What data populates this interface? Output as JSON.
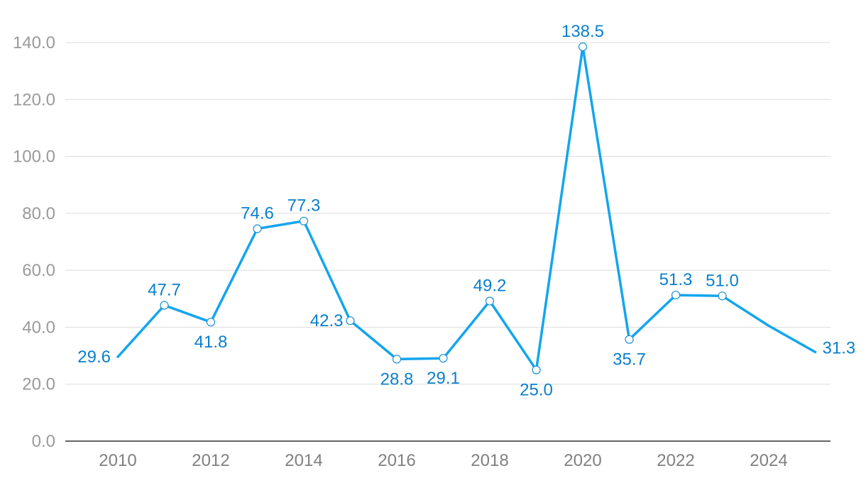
{
  "chart_data": {
    "type": "line",
    "title": "",
    "xlabel": "",
    "ylabel": "",
    "x": [
      2010,
      2011,
      2012,
      2013,
      2014,
      2015,
      2016,
      2017,
      2018,
      2019,
      2020,
      2021,
      2022,
      2023,
      2024,
      2025
    ],
    "series": [
      {
        "values": [
          29.6,
          47.7,
          41.8,
          74.6,
          77.3,
          42.3,
          28.8,
          29.1,
          49.2,
          25.0,
          138.5,
          35.7,
          51.3,
          51.0,
          40.5,
          31.3
        ],
        "labels": [
          "29.6",
          "47.7",
          "41.8",
          "74.6",
          "77.3",
          "42.3",
          "28.8",
          "29.1",
          "49.2",
          "25.0",
          "138.5",
          "35.7",
          "51.3",
          "51.0",
          null,
          "31.3"
        ],
        "label_side": [
          "left",
          "above",
          "below",
          "above",
          "above",
          "left",
          "below",
          "below",
          "above",
          "below",
          "above",
          "below",
          "above",
          "above",
          null,
          "right"
        ],
        "markers": [
          false,
          true,
          true,
          true,
          true,
          true,
          true,
          true,
          true,
          true,
          true,
          true,
          true,
          true,
          false,
          false
        ]
      }
    ],
    "xticks": [
      "2010",
      "2012",
      "2014",
      "2016",
      "2018",
      "2020",
      "2022",
      "2024"
    ],
    "yticks": [
      "0.0",
      "20.0",
      "40.0",
      "60.0",
      "80.0",
      "100.0",
      "120.0",
      "140.0"
    ],
    "ylim": [
      0,
      140
    ],
    "grid": true,
    "legend": "none",
    "colors": {
      "line": "#13a5ee",
      "label": "#0a7fcc",
      "marker": "#1a8fd6"
    }
  }
}
